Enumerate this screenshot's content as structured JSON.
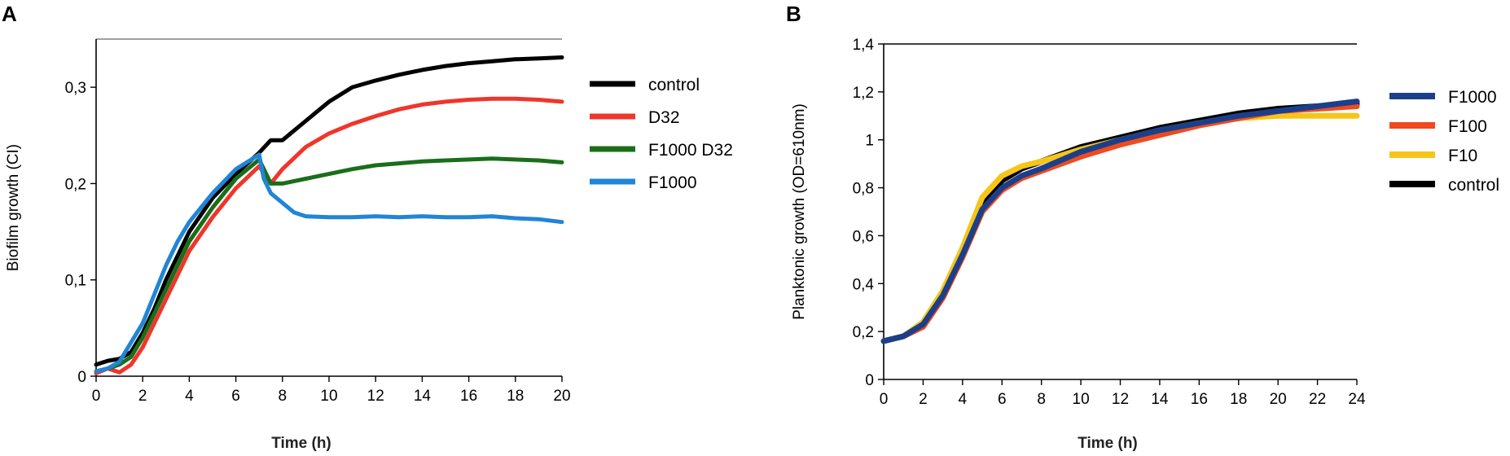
{
  "chart_data": [
    {
      "panel": "A",
      "type": "line",
      "title": "",
      "xlabel": "Time (h)",
      "ylabel": "Biofilm growth (CI)",
      "xlim": [
        0,
        20
      ],
      "ylim": [
        0,
        0.35
      ],
      "xticks": [
        0,
        2,
        4,
        6,
        8,
        10,
        12,
        14,
        16,
        18,
        20
      ],
      "yticks": [
        {
          "value": 0,
          "label": "0"
        },
        {
          "value": 0.1,
          "label": "0,1"
        },
        {
          "value": 0.2,
          "label": "0,2"
        },
        {
          "value": 0.3,
          "label": "0,3"
        }
      ],
      "legend": [
        "control",
        "D32",
        "F1000 D32",
        "F1000"
      ],
      "series": [
        {
          "name": "control",
          "color": "#000000",
          "x": [
            0,
            0.5,
            1,
            1.5,
            2,
            2.5,
            3,
            4,
            5,
            6,
            7,
            7.5,
            8,
            9,
            10,
            11,
            12,
            13,
            14,
            15,
            16,
            17,
            18,
            19,
            20
          ],
          "y": [
            0.012,
            0.016,
            0.018,
            0.025,
            0.045,
            0.07,
            0.1,
            0.15,
            0.185,
            0.21,
            0.232,
            0.245,
            0.245,
            0.265,
            0.285,
            0.3,
            0.307,
            0.313,
            0.318,
            0.322,
            0.325,
            0.327,
            0.329,
            0.33,
            0.331
          ]
        },
        {
          "name": "D32",
          "color": "#f0352b",
          "x": [
            0,
            0.5,
            1,
            1.5,
            2,
            2.5,
            3,
            4,
            5,
            6,
            7,
            7.5,
            8,
            9,
            10,
            11,
            12,
            13,
            14,
            15,
            16,
            17,
            18,
            19,
            20
          ],
          "y": [
            0.003,
            0.008,
            0.004,
            0.012,
            0.03,
            0.055,
            0.08,
            0.13,
            0.165,
            0.195,
            0.218,
            0.2,
            0.215,
            0.238,
            0.252,
            0.262,
            0.27,
            0.277,
            0.282,
            0.285,
            0.287,
            0.288,
            0.288,
            0.287,
            0.285
          ]
        },
        {
          "name": "F1000 D32",
          "color": "#1a6e1a",
          "x": [
            0,
            0.5,
            1,
            1.5,
            2,
            2.5,
            3,
            4,
            5,
            6,
            7,
            7.5,
            8,
            9,
            10,
            11,
            12,
            13,
            14,
            15,
            16,
            17,
            18,
            19,
            20
          ],
          "y": [
            0.005,
            0.008,
            0.012,
            0.02,
            0.04,
            0.065,
            0.09,
            0.14,
            0.175,
            0.205,
            0.225,
            0.2,
            0.2,
            0.205,
            0.21,
            0.215,
            0.219,
            0.221,
            0.223,
            0.224,
            0.225,
            0.226,
            0.225,
            0.224,
            0.222
          ]
        },
        {
          "name": "F1000",
          "color": "#2185d6",
          "x": [
            0,
            0.5,
            1,
            1.5,
            2,
            2.5,
            3,
            3.5,
            4,
            5,
            6,
            7,
            7.2,
            7.5,
            8,
            8.5,
            9,
            10,
            11,
            12,
            13,
            14,
            15,
            16,
            17,
            18,
            19,
            20
          ],
          "y": [
            0.005,
            0.008,
            0.015,
            0.035,
            0.055,
            0.085,
            0.115,
            0.14,
            0.16,
            0.19,
            0.215,
            0.23,
            0.205,
            0.19,
            0.18,
            0.17,
            0.166,
            0.165,
            0.165,
            0.166,
            0.165,
            0.166,
            0.165,
            0.165,
            0.166,
            0.164,
            0.163,
            0.16
          ]
        }
      ]
    },
    {
      "panel": "B",
      "type": "line",
      "title": "",
      "xlabel": "Time (h)",
      "ylabel": "Planktonic growth (OD=610nm)",
      "xlim": [
        0,
        24
      ],
      "ylim": [
        0,
        1.4
      ],
      "xticks": [
        0,
        2,
        4,
        6,
        8,
        10,
        12,
        14,
        16,
        18,
        20,
        22,
        24
      ],
      "yticks": [
        {
          "value": 0,
          "label": "0"
        },
        {
          "value": 0.2,
          "label": "0,2"
        },
        {
          "value": 0.4,
          "label": "0,4"
        },
        {
          "value": 0.6,
          "label": "0,6"
        },
        {
          "value": 0.8,
          "label": "0,8"
        },
        {
          "value": 1,
          "label": "1"
        },
        {
          "value": 1.2,
          "label": "1,2"
        },
        {
          "value": 1.4,
          "label": "1,4"
        }
      ],
      "legend": [
        "F1000",
        "F100",
        "F10",
        "control"
      ],
      "series": [
        {
          "name": "control",
          "color": "#000000",
          "x": [
            0,
            1,
            2,
            3,
            4,
            5,
            6,
            7,
            8,
            10,
            12,
            14,
            16,
            18,
            20,
            22,
            24
          ],
          "y": [
            0.16,
            0.18,
            0.23,
            0.35,
            0.52,
            0.72,
            0.83,
            0.88,
            0.91,
            0.97,
            1.01,
            1.05,
            1.08,
            1.11,
            1.13,
            1.14,
            1.15
          ]
        },
        {
          "name": "F10",
          "color": "#f5c518",
          "x": [
            0,
            1,
            2,
            3,
            4,
            5,
            6,
            7,
            8,
            10,
            12,
            14,
            16,
            18,
            20,
            22,
            24
          ],
          "y": [
            0.16,
            0.18,
            0.24,
            0.37,
            0.55,
            0.76,
            0.85,
            0.89,
            0.91,
            0.96,
            1.0,
            1.04,
            1.07,
            1.09,
            1.1,
            1.1,
            1.1
          ]
        },
        {
          "name": "F100",
          "color": "#f04a1e",
          "x": [
            0,
            1,
            2,
            3,
            4,
            5,
            6,
            7,
            8,
            10,
            12,
            14,
            16,
            18,
            20,
            22,
            24
          ],
          "y": [
            0.16,
            0.18,
            0.22,
            0.34,
            0.51,
            0.7,
            0.79,
            0.84,
            0.87,
            0.93,
            0.98,
            1.02,
            1.06,
            1.09,
            1.12,
            1.13,
            1.14
          ]
        },
        {
          "name": "F1000",
          "color": "#1b3f8a",
          "x": [
            0,
            1,
            2,
            3,
            4,
            5,
            6,
            7,
            8,
            10,
            12,
            14,
            16,
            18,
            20,
            22,
            24
          ],
          "y": [
            0.16,
            0.18,
            0.23,
            0.35,
            0.52,
            0.71,
            0.8,
            0.85,
            0.88,
            0.95,
            1.0,
            1.04,
            1.07,
            1.1,
            1.12,
            1.14,
            1.16
          ]
        }
      ]
    }
  ]
}
